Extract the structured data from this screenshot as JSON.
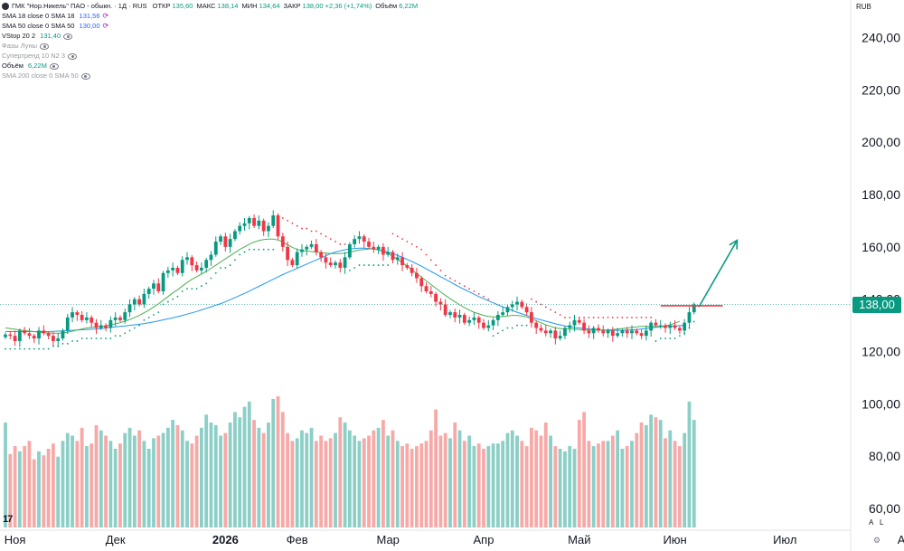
{
  "legend": {
    "symbol": "ГМК \"Нор.Никель\" ПАО - обыкн. · 1Д · RUS",
    "ohlc": [
      {
        "label": "ОТКР",
        "value": "135,60"
      },
      {
        "label": "МАКС",
        "value": "138,14"
      },
      {
        "label": "МИН",
        "value": "134,64"
      },
      {
        "label": "ЗАКР",
        "value": "138,00 +2,36 (+1,74%)"
      },
      {
        "label": "Объём",
        "value": "6,22M"
      }
    ],
    "indicators": [
      {
        "name": "SMA 18 close 0 SMA 18",
        "value": "131,56",
        "hidden": false,
        "value_color": "#2962ff"
      },
      {
        "name": "SMA 50 close 0 SMA 50",
        "value": "130,00",
        "hidden": false,
        "value_color": "#2962ff"
      },
      {
        "name": "VStop 20 2",
        "value": "131,40",
        "hidden": false,
        "value_color": "#089981"
      },
      {
        "name": "Фазы Луны",
        "value": "",
        "hidden": true,
        "value_color": "#9598a1"
      },
      {
        "name": "Супертренд 10 N2 3",
        "value": "",
        "hidden": true,
        "value_color": "#9598a1"
      },
      {
        "name": "Объём",
        "value": "6,22M",
        "hidden": false,
        "value_color": "#089981"
      },
      {
        "name": "SMA 200 close 0 SMA 50",
        "value": "",
        "hidden": true,
        "value_color": "#9598a1"
      }
    ]
  },
  "currency": "RUB",
  "last_price": "138,00",
  "tv_logo": "17",
  "corner": {
    "auto": "A",
    "log": "L"
  },
  "icons": [
    "symbol-icon",
    "eye-icon",
    "settings-gear-icon",
    "arrow-up-icon"
  ],
  "colors": {
    "up": "#089981",
    "down": "#f23645",
    "sma18": "#4caf50",
    "sma50": "#2196f3",
    "vstop_up": "#089981",
    "vstop_down": "#f23645",
    "vol_up": "#8ccfc7",
    "vol_down": "#f7a9a7",
    "level": "#f23645",
    "arrow": "#089981"
  },
  "chart_data": {
    "type": "candlestick",
    "title": "ГМК \"Нор.Никель\" ПАО - обыкн. · 1Д · RUS",
    "ylabel": "",
    "xlabel": "",
    "y_ticks": [
      "240,00",
      "220,00",
      "200,00",
      "180,00",
      "160,00",
      "140,00",
      "120,00",
      "100,00",
      "80,00",
      "60,00"
    ],
    "y_tick_values": [
      240,
      220,
      200,
      180,
      160,
      140,
      120,
      100,
      80,
      60
    ],
    "ylim": [
      55,
      245
    ],
    "x_labels": [
      "Ноя",
      "Дек",
      "2026",
      "Фев",
      "Мар",
      "Апр",
      "Май",
      "Июн",
      "Июл",
      "Ав"
    ],
    "x_label_bold": [
      false,
      false,
      true,
      false,
      false,
      false,
      false,
      false,
      false,
      false
    ],
    "x_label_index": [
      2,
      23,
      46,
      61,
      80,
      100,
      120,
      140,
      163,
      188
    ],
    "closes": [
      126.5,
      126,
      124,
      128,
      127,
      126,
      125,
      128,
      127,
      126,
      124,
      125,
      128,
      133,
      135,
      134,
      132,
      133,
      131,
      129,
      130,
      129,
      132,
      133,
      132,
      135,
      138,
      140,
      138,
      142,
      144,
      146,
      143,
      150,
      151,
      152,
      150,
      155,
      156,
      153,
      151,
      152,
      155,
      157,
      162,
      164,
      160,
      163,
      166,
      168,
      169,
      171,
      168,
      170,
      166,
      168,
      172,
      164,
      160,
      155,
      153,
      158,
      159,
      160,
      161,
      158,
      156,
      154,
      153,
      154,
      152,
      156,
      161,
      163,
      164,
      162,
      160,
      159,
      160,
      157,
      158,
      155,
      156,
      153,
      152,
      150,
      148,
      145,
      143,
      142,
      139,
      138,
      134,
      135,
      133,
      134,
      131,
      132,
      133,
      131,
      129,
      130,
      132,
      134,
      135,
      137,
      138,
      139,
      137,
      135,
      131,
      129,
      128,
      127,
      128,
      125,
      126,
      129,
      130,
      132,
      131,
      128,
      127,
      129,
      128,
      127,
      128,
      126,
      127,
      128,
      127,
      128,
      127,
      126,
      128,
      131,
      130,
      130,
      129,
      130,
      129,
      128,
      131,
      135,
      138
    ],
    "sma18": [
      129,
      128.8,
      128.5,
      128.2,
      128,
      127.8,
      127.6,
      127.4,
      127.2,
      127.1,
      127,
      127,
      127.1,
      127.4,
      127.8,
      128.2,
      128.6,
      129,
      129.2,
      129.4,
      129.6,
      129.8,
      130.2,
      130.6,
      131,
      131.6,
      132.2,
      133,
      133.8,
      134.8,
      135.8,
      137,
      138.2,
      139.6,
      141,
      142.4,
      143.6,
      145,
      146.4,
      147.6,
      148.6,
      149.6,
      150.6,
      151.8,
      153,
      154.2,
      155.4,
      156.6,
      157.8,
      159,
      160,
      161,
      161.8,
      162.4,
      162.8,
      163,
      163,
      162.6,
      161.8,
      160.8,
      159.8,
      159,
      158.6,
      158.4,
      158.2,
      158,
      157.8,
      157.6,
      157.4,
      157.4,
      157.4,
      157.6,
      158,
      158.4,
      158.8,
      159,
      159.2,
      159.2,
      158.8,
      158.2,
      157.4,
      156.4,
      155.2,
      154,
      152.6,
      151.2,
      149.8,
      148.4,
      147,
      145.6,
      144.2,
      142.8,
      141.4,
      140.2,
      139,
      137.8,
      136.8,
      135.8,
      135,
      134.4,
      133.8,
      133.4,
      133.2,
      133.2,
      133.4,
      133.6,
      133.8,
      133.8,
      133.6,
      133.2,
      132.6,
      131.8,
      131,
      130.2,
      129.6,
      129,
      128.8,
      128.6,
      128.6,
      128.6,
      128.4,
      128.2,
      128.2,
      128.2,
      128.2,
      128.2,
      128.2,
      128.4,
      128.6,
      128.8,
      129,
      129.2,
      129.4,
      129.6,
      129.6,
      129.6,
      129.6,
      129.6,
      129.8,
      130.2,
      130.8,
      131.56
    ],
    "sma50": [
      127.6,
      127.6,
      127.6,
      127.6,
      127.6,
      127.6,
      127.6,
      127.6,
      127.6,
      127.6,
      127.7,
      127.8,
      127.9,
      128,
      128.1,
      128.2,
      128.3,
      128.4,
      128.5,
      128.6,
      128.8,
      129,
      129.2,
      129.4,
      129.6,
      129.8,
      130,
      130.2,
      130.4,
      130.7,
      131,
      131.3,
      131.7,
      132.1,
      132.5,
      132.9,
      133.3,
      133.8,
      134.3,
      134.8,
      135.3,
      135.9,
      136.5,
      137.1,
      137.7,
      138.3,
      139,
      139.8,
      140.6,
      141.4,
      142.2,
      143.1,
      144,
      144.9,
      145.8,
      146.7,
      147.6,
      148.5,
      149.4,
      150.2,
      151,
      151.8,
      152.6,
      153.4,
      154.2,
      155,
      155.8,
      156.6,
      157.4,
      158,
      158.5,
      158.9,
      159.2,
      159.4,
      159.5,
      159.5,
      159.4,
      159.2,
      158.9,
      158.5,
      158,
      157.4,
      156.7,
      156,
      155.2,
      154.4,
      153.5,
      152.6,
      151.6,
      150.6,
      149.6,
      148.6,
      147.6,
      146.6,
      145.6,
      144.6,
      143.7,
      142.8,
      141.9,
      141,
      140.2,
      139.4,
      138.6,
      137.8,
      137.1,
      136.4,
      135.7,
      135,
      134.4,
      133.8,
      133.2,
      132.6,
      132.1,
      131.6,
      131.1,
      130.6,
      130.2,
      129.8,
      129.5,
      129.2,
      129,
      128.8,
      128.6,
      128.4,
      128.3,
      128.2,
      128.1,
      128.1,
      128.1,
      128.1,
      128.2,
      128.3,
      128.4,
      128.6,
      128.8,
      129,
      129.2,
      129.4,
      129.6,
      129.7,
      129.8,
      129.9,
      130
    ],
    "vstop": [
      121,
      121,
      121,
      121,
      121,
      121,
      121,
      121,
      121,
      121,
      122,
      122,
      123,
      123,
      124,
      124,
      125,
      125,
      125,
      125,
      125,
      125,
      125,
      126,
      126,
      127,
      128,
      129,
      130,
      132,
      133,
      134,
      135,
      138,
      139,
      140,
      141,
      143,
      144,
      144,
      144,
      145,
      146,
      148,
      150,
      152,
      152,
      153,
      155,
      157,
      158,
      159,
      159,
      159,
      159,
      159,
      159,
      172,
      171,
      170,
      169,
      168,
      167,
      167,
      166,
      166,
      165,
      164,
      163,
      162,
      161,
      161,
      151,
      152,
      153,
      153,
      153,
      153,
      153,
      153,
      153,
      165,
      164,
      163,
      162,
      161,
      160,
      159,
      157,
      155,
      153,
      151,
      149,
      148,
      147,
      146,
      145,
      144,
      143,
      142,
      141,
      140,
      126,
      127,
      128,
      129,
      129,
      130,
      130,
      130,
      140,
      139,
      138,
      137,
      136,
      135,
      134,
      133,
      133,
      133,
      133,
      133,
      133,
      133,
      133,
      133,
      133,
      133,
      133,
      133,
      133,
      133,
      133,
      133,
      133,
      133,
      124,
      125,
      125,
      125,
      125,
      126,
      127,
      129,
      131.4
    ],
    "volumes": [
      80,
      56,
      62,
      58,
      62,
      66,
      52,
      58,
      55,
      60,
      64,
      54,
      66,
      72,
      70,
      66,
      76,
      62,
      64,
      78,
      74,
      70,
      66,
      60,
      64,
      72,
      76,
      70,
      74,
      66,
      60,
      68,
      70,
      72,
      76,
      82,
      78,
      74,
      66,
      64,
      70,
      76,
      86,
      80,
      78,
      70,
      72,
      80,
      88,
      84,
      92,
      96,
      82,
      76,
      72,
      80,
      98,
      100,
      88,
      72,
      66,
      68,
      74,
      72,
      76,
      66,
      70,
      66,
      68,
      72,
      84,
      80,
      74,
      70,
      66,
      68,
      70,
      74,
      76,
      82,
      70,
      74,
      66,
      62,
      64,
      60,
      62,
      64,
      66,
      74,
      90,
      70,
      72,
      68,
      80,
      74,
      66,
      70,
      62,
      64,
      60,
      62,
      64,
      64,
      66,
      72,
      74,
      70,
      66,
      62,
      76,
      74,
      70,
      80,
      70,
      62,
      60,
      58,
      62,
      60,
      82,
      88,
      66,
      62,
      64,
      66,
      66,
      70,
      74,
      60,
      62,
      66,
      72,
      80,
      78,
      86,
      84,
      82,
      68,
      74,
      66,
      62,
      72,
      96,
      82
    ],
    "volume_scale": {
      "max_value": 100,
      "base_px": 583,
      "max_px": 145
    },
    "annotations": [
      {
        "type": "horizontal-level",
        "y": 137.5,
        "from_index": 137,
        "to_index": 150,
        "color": "#f23645"
      },
      {
        "type": "arrow",
        "from": {
          "index": 145,
          "y": 137
        },
        "to": {
          "index": 153,
          "y": 162.5
        },
        "color": "#089981"
      }
    ],
    "last_price": 138.0,
    "up_color": "#089981",
    "down_color": "#f23645",
    "legend_position": "top-left",
    "grid": false
  }
}
